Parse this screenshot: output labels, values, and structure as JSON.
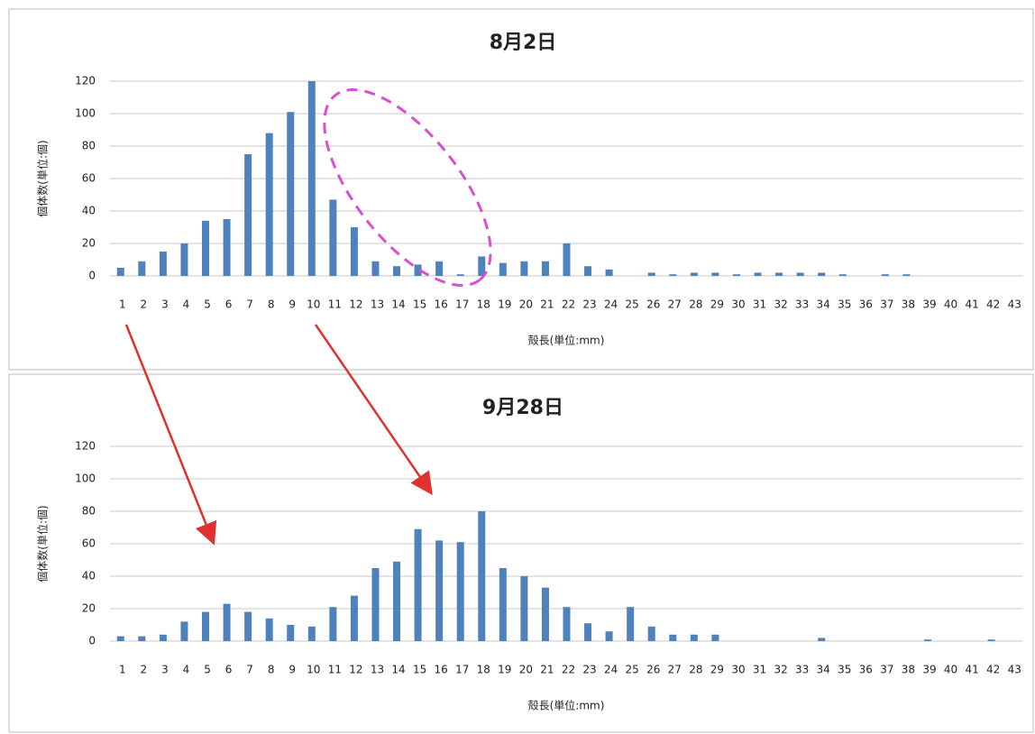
{
  "chart_data": [
    {
      "type": "bar",
      "title": "8月2日",
      "y_label": "個体数(単位:個)",
      "x_label": "殻長(単位:mm)",
      "categories": [
        "1",
        "2",
        "3",
        "4",
        "5",
        "6",
        "7",
        "8",
        "9",
        "10",
        "11",
        "12",
        "13",
        "14",
        "15",
        "16",
        "17",
        "18",
        "19",
        "20",
        "21",
        "22",
        "23",
        "24",
        "25",
        "26",
        "27",
        "28",
        "29",
        "30",
        "31",
        "32",
        "33",
        "34",
        "35",
        "36",
        "37",
        "38",
        "39",
        "40",
        "41",
        "42",
        "43"
      ],
      "values": [
        5,
        9,
        15,
        20,
        34,
        35,
        75,
        88,
        101,
        120,
        47,
        30,
        9,
        6,
        7,
        9,
        1,
        12,
        8,
        9,
        9,
        20,
        6,
        4,
        0,
        2,
        1,
        2,
        2,
        1,
        2,
        2,
        2,
        2,
        1,
        0,
        1,
        1,
        0,
        0,
        0,
        0,
        0
      ],
      "color": "#4f81bd",
      "ylim": [
        0,
        120
      ],
      "yticks": [
        0,
        20,
        40,
        60,
        80,
        100,
        120
      ],
      "grid": true
    },
    {
      "type": "bar",
      "title": "9月28日",
      "y_label": "個体数(単位:個)",
      "x_label": "殻長(単位:mm)",
      "categories": [
        "1",
        "2",
        "3",
        "4",
        "5",
        "6",
        "7",
        "8",
        "9",
        "10",
        "11",
        "12",
        "13",
        "14",
        "15",
        "16",
        "17",
        "18",
        "19",
        "20",
        "21",
        "22",
        "23",
        "24",
        "25",
        "26",
        "27",
        "28",
        "29",
        "30",
        "31",
        "32",
        "33",
        "34",
        "35",
        "36",
        "37",
        "38",
        "39",
        "40",
        "41",
        "42",
        "43"
      ],
      "values": [
        3,
        3,
        4,
        12,
        18,
        23,
        18,
        14,
        10,
        9,
        21,
        28,
        45,
        49,
        69,
        62,
        61,
        80,
        45,
        40,
        33,
        21,
        11,
        6,
        21,
        9,
        4,
        4,
        4,
        0,
        0,
        0,
        0,
        2,
        0,
        0,
        0,
        0,
        1,
        0,
        0,
        1,
        0
      ],
      "color": "#4f81bd",
      "ylim": [
        0,
        120
      ],
      "yticks": [
        0,
        20,
        40,
        60,
        80,
        100,
        120
      ],
      "grid": true
    }
  ]
}
